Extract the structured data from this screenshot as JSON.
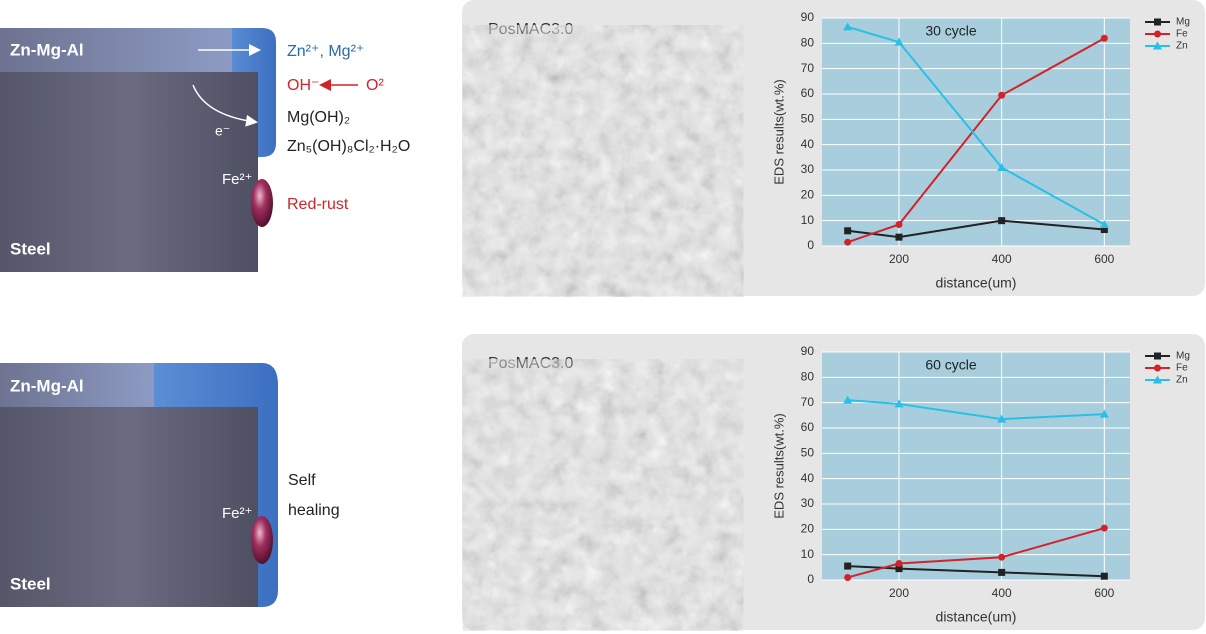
{
  "diagrams": [
    {
      "coating": "Zn-Mg-Al",
      "substrate": "Steel",
      "ion": "Fe²⁺",
      "notes": [
        "Zn²⁺, Mg²⁺",
        "OH⁻",
        "O²",
        "e⁻",
        "Mg(OH)₂",
        "Zn₅(OH)₈Cl₂·H₂O",
        "Red-rust"
      ]
    },
    {
      "coating": "Zn-Mg-Al",
      "substrate": "Steel",
      "ion": "Fe²⁺",
      "notes": [
        "Self",
        "healing"
      ]
    }
  ],
  "chart_data": [
    {
      "type": "line",
      "panel_label": "PosMAC3.0",
      "title": "30 cycle",
      "x_label": "distance(um)",
      "y_label": "EDS results(wt.%)",
      "x": [
        100,
        200,
        400,
        600
      ],
      "xlim": [
        50,
        650
      ],
      "xticks": [
        200,
        400,
        600
      ],
      "ylim": [
        0,
        90
      ],
      "yticks": [
        0,
        10,
        20,
        30,
        40,
        50,
        60,
        70,
        80,
        90
      ],
      "grid": true,
      "series": [
        {
          "name": "Mg",
          "color": "#222222",
          "marker": "square",
          "values": [
            6,
            3.5,
            10,
            6.5
          ]
        },
        {
          "name": "Fe",
          "color": "#d2232a",
          "marker": "circle",
          "values": [
            1.5,
            8.5,
            59.5,
            82
          ]
        },
        {
          "name": "Zn",
          "color": "#29c0e8",
          "marker": "triangle",
          "values": [
            86.5,
            80.5,
            31,
            8.5
          ]
        }
      ]
    },
    {
      "type": "line",
      "panel_label": "PosMAC3.0",
      "title": "60 cycle",
      "x_label": "distance(um)",
      "y_label": "EDS results(wt.%)",
      "x": [
        100,
        200,
        400,
        600
      ],
      "xlim": [
        50,
        650
      ],
      "xticks": [
        200,
        400,
        600
      ],
      "ylim": [
        0,
        90
      ],
      "yticks": [
        0,
        10,
        20,
        30,
        40,
        50,
        60,
        70,
        80,
        90
      ],
      "grid": true,
      "series": [
        {
          "name": "Mg",
          "color": "#222222",
          "marker": "square",
          "values": [
            5.5,
            4.5,
            3,
            1.5
          ]
        },
        {
          "name": "Fe",
          "color": "#d2232a",
          "marker": "circle",
          "values": [
            1,
            6.5,
            9,
            20.5
          ]
        },
        {
          "name": "Zn",
          "color": "#29c0e8",
          "marker": "triangle",
          "values": [
            71,
            69.5,
            63.5,
            65.5
          ]
        }
      ]
    }
  ]
}
